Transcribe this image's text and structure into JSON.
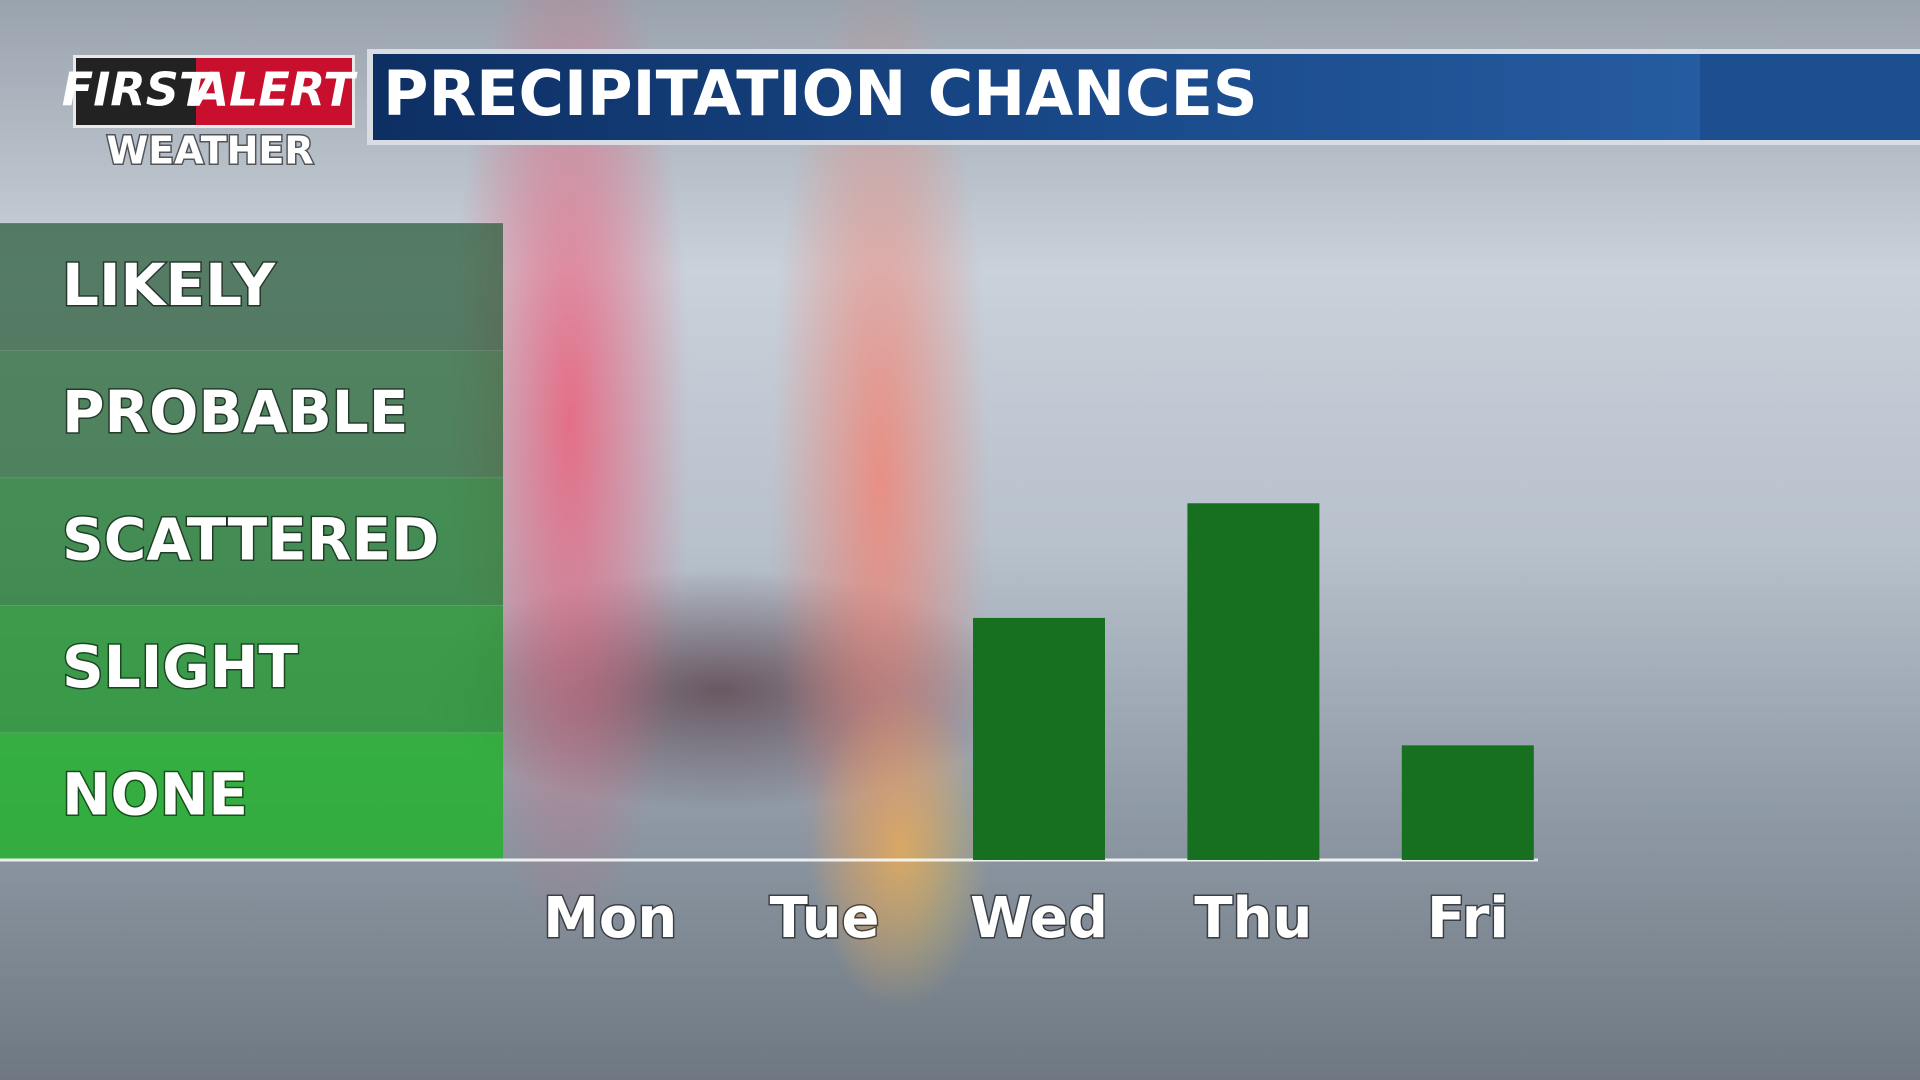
{
  "logo": {
    "first": "FIRST",
    "alert": "ALERT",
    "sub": "WEATHER"
  },
  "chart_data": {
    "type": "bar",
    "title": "PRECIPITATION CHANCES",
    "categories": [
      "Mon",
      "Tue",
      "Wed",
      "Thu",
      "Fri"
    ],
    "values": [
      0,
      0,
      1.9,
      2.8,
      0.9
    ],
    "color": "#17701f",
    "ylim": [
      0,
      5
    ],
    "yticks": [
      {
        "value": 0.5,
        "label": "NONE"
      },
      {
        "value": 1.5,
        "label": "SLIGHT"
      },
      {
        "value": 2.5,
        "label": "SCATTERED"
      },
      {
        "value": 3.5,
        "label": "PROBABLE"
      },
      {
        "value": 4.5,
        "label": "LIKELY"
      }
    ]
  }
}
